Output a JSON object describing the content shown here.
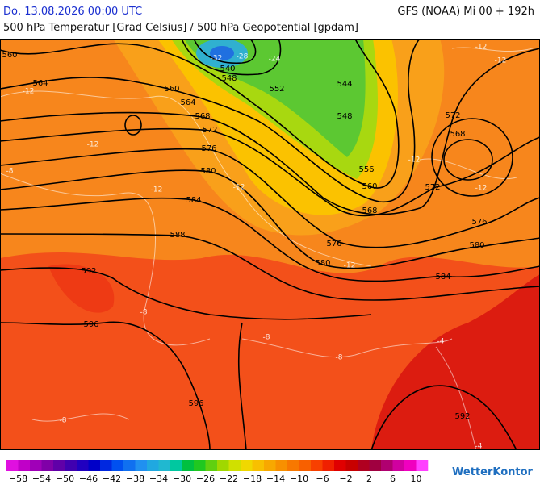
{
  "header": {
    "date": "Do, 13.08.2026 00:00 UTC",
    "model": "GFS (NOAA) Mi 00 + 192h",
    "title": "500 hPa Temperatur [Grad Celsius] / 500 hPa Geopotential [gpdam]"
  },
  "contour_labels": [
    "560",
    "564",
    "560",
    "564",
    "568",
    "572",
    "576",
    "580",
    "584",
    "588",
    "592",
    "596",
    "596",
    "540",
    "548",
    "552",
    "544",
    "548",
    "556",
    "560",
    "568",
    "572",
    "568",
    "572",
    "576",
    "580",
    "576",
    "580",
    "584",
    "592"
  ],
  "temperature_labels": [
    "-32",
    "-28",
    "-24",
    "-12",
    "-12",
    "-12",
    "-12",
    "-8",
    "-12",
    "-12",
    "-12",
    "-8",
    "-8",
    "-8",
    "-4",
    "-8",
    "-4",
    "-12",
    "-12"
  ],
  "colorbar": {
    "colors": [
      "#e010e0",
      "#c000c8",
      "#a000b8",
      "#8000a8",
      "#6000a8",
      "#4000b0",
      "#2000c0",
      "#0000c8",
      "#0028e0",
      "#0050f0",
      "#1070f0",
      "#2090f0",
      "#20a8e0",
      "#20b8d0",
      "#00c8a0",
      "#00c040",
      "#20c820",
      "#60d010",
      "#a0d800",
      "#d0e000",
      "#f0d800",
      "#f8c000",
      "#f8a800",
      "#f89000",
      "#f87800",
      "#f86000",
      "#f84000",
      "#f02000",
      "#e00000",
      "#c80000",
      "#b00020",
      "#a00040",
      "#b00070",
      "#d000a0",
      "#f000c0",
      "#ff40ff"
    ],
    "labels": [
      "−58",
      "−54",
      "−50",
      "−46",
      "−42",
      "−38",
      "−34",
      "−30",
      "−26",
      "−22",
      "−18",
      "−14",
      "−10",
      "−6",
      "−2",
      "2",
      "6",
      "10"
    ]
  },
  "logo": "WetterKontor"
}
